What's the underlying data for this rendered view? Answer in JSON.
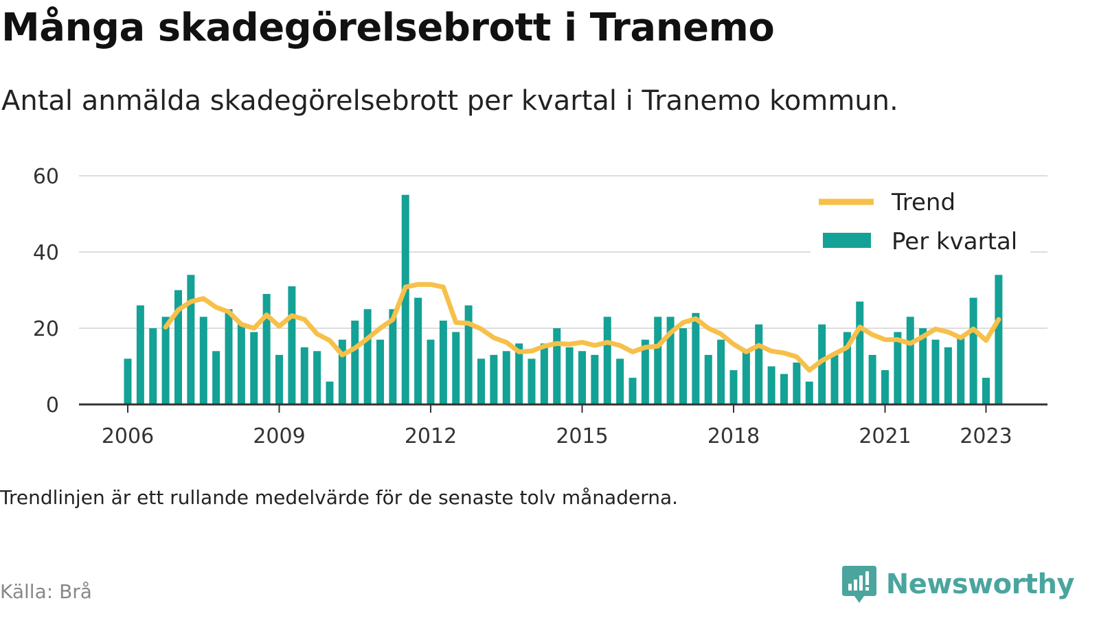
{
  "title": "Många skadegörelsebrott i Tranemo",
  "subtitle": "Antal anmälda skadegörelsebrott per kvartal i Tranemo kommun.",
  "footnote": "Trendlinjen är ett rullande medelvärde för de senaste tolv månaderna.",
  "source": "Källa: Brå",
  "brand": {
    "name": "Newsworthy",
    "icon": "newsworthy-logo-icon"
  },
  "colors": {
    "bars": "#14a196",
    "trend": "#f7c04a",
    "grid": "#dddddd",
    "axis": "#333333"
  },
  "chart_data": {
    "type": "bar",
    "x_type": "quarter",
    "start": "2006 Q1",
    "end": "2023 Q2",
    "x_ticks": [
      "2006",
      "2009",
      "2012",
      "2015",
      "2018",
      "2021",
      "2023"
    ],
    "y_ticks": [
      "0",
      "20",
      "40",
      "60"
    ],
    "ylim": [
      0,
      60
    ],
    "grid": true,
    "legend_position": "top-right",
    "series": [
      {
        "name": "Per kvartal",
        "type": "bar",
        "values": [
          12,
          26,
          20,
          23,
          30,
          34,
          23,
          14,
          25,
          21,
          19,
          29,
          13,
          31,
          15,
          14,
          6,
          17,
          22,
          25,
          17,
          25,
          55,
          28,
          17,
          22,
          19,
          26,
          12,
          13,
          14,
          16,
          12,
          16,
          20,
          15,
          14,
          13,
          23,
          12,
          7,
          17,
          23,
          23,
          20,
          24,
          13,
          17,
          9,
          14,
          21,
          10,
          8,
          11,
          6,
          21,
          13,
          19,
          27,
          13,
          9,
          19,
          23,
          20,
          17,
          15,
          18,
          28,
          7,
          34
        ]
      },
      {
        "name": "Trend",
        "type": "line",
        "values": [
          null,
          null,
          null,
          20.3,
          24.8,
          27.0,
          27.8,
          25.5,
          24.3,
          21.0,
          20.0,
          23.5,
          20.5,
          23.3,
          22.3,
          18.5,
          16.8,
          13.0,
          14.8,
          17.3,
          20.0,
          22.3,
          30.8,
          31.5,
          31.5,
          30.8,
          21.5,
          21.3,
          19.8,
          17.5,
          16.3,
          13.8,
          14.0,
          15.3,
          16.0,
          15.8,
          16.3,
          15.5,
          16.3,
          15.5,
          13.8,
          15.0,
          15.3,
          18.8,
          21.5,
          22.5,
          20.0,
          18.5,
          15.8,
          13.8,
          15.5,
          14.0,
          13.5,
          12.5,
          9.0,
          11.5,
          13.3,
          15.0,
          20.3,
          18.3,
          17.0,
          17.0,
          16.0,
          17.8,
          19.8,
          19.0,
          17.5,
          19.8,
          16.8,
          22.3
        ]
      }
    ]
  }
}
